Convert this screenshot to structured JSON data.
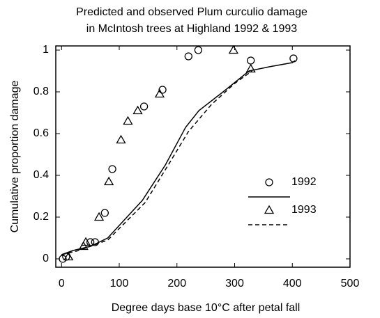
{
  "chart_data": {
    "type": "scatter",
    "title": [
      "Predicted and observed Plum curculio damage",
      "in McIntosh trees at Highland 1992 & 1993"
    ],
    "xlabel": "Degree days base 10°C after petal fall",
    "ylabel": "Cumulative proportion damage",
    "xlim": [
      -10,
      500
    ],
    "xticks": [
      0,
      100,
      200,
      300,
      400,
      500
    ],
    "ylim": [
      -0.04,
      1.02
    ],
    "yticks": [
      0,
      0.2,
      0.4,
      0.6,
      0.8,
      1
    ],
    "color": "#000000",
    "series": [
      {
        "name": "1992",
        "marker": "circle",
        "dash": false,
        "x": [
          2,
          8,
          50,
          58,
          75,
          88,
          143,
          175,
          220,
          237,
          328,
          402
        ],
        "values": [
          0.0,
          0.01,
          0.08,
          0.08,
          0.22,
          0.43,
          0.73,
          0.81,
          0.97,
          1.0,
          0.95,
          0.96
        ],
        "line_x": [
          0,
          20,
          50,
          80,
          140,
          180,
          215,
          238,
          280,
          325,
          360,
          400,
          405
        ],
        "line_values": [
          0.02,
          0.04,
          0.06,
          0.1,
          0.28,
          0.45,
          0.63,
          0.71,
          0.8,
          0.9,
          0.92,
          0.94,
          0.95
        ]
      },
      {
        "name": "1993",
        "marker": "triangle",
        "dash": true,
        "x": [
          12,
          38,
          42,
          65,
          82,
          103,
          115,
          132,
          170,
          298,
          328
        ],
        "values": [
          0.01,
          0.06,
          0.08,
          0.2,
          0.37,
          0.57,
          0.66,
          0.71,
          0.79,
          1.0,
          0.91
        ],
        "line_x": [
          0,
          30,
          60,
          80,
          145,
          185,
          220,
          260,
          300,
          330
        ],
        "line_values": [
          0.02,
          0.04,
          0.07,
          0.09,
          0.27,
          0.45,
          0.61,
          0.74,
          0.84,
          0.9
        ]
      }
    ]
  }
}
